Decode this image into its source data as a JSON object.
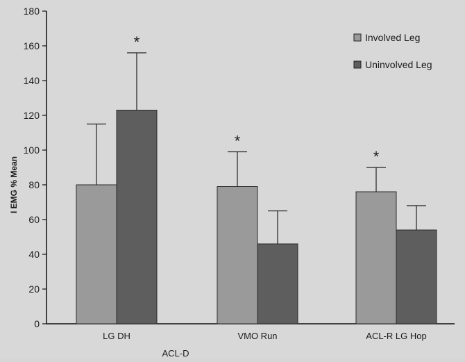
{
  "chart_data": {
    "type": "bar",
    "title": "",
    "ylabel": "I EMG % Mean",
    "xlabel": "",
    "ylim": [
      0,
      180
    ],
    "yticks": [
      0,
      20,
      40,
      60,
      80,
      100,
      120,
      140,
      160,
      180
    ],
    "categories": [
      "LG DH",
      "VMO Run",
      "ACL-R LG Hop"
    ],
    "group_label": "ACL-D",
    "legend_position": "top-right",
    "grid": false,
    "series": [
      {
        "name": "Involved Leg",
        "color": "#9a9a9a",
        "values": [
          80,
          79,
          76
        ],
        "error": [
          35,
          20,
          14
        ]
      },
      {
        "name": "Uninvolved Leg",
        "color": "#5e5e5e",
        "values": [
          123,
          46,
          54
        ],
        "error": [
          33,
          19,
          14
        ]
      }
    ],
    "annotations": [
      {
        "text": "*",
        "series": 1,
        "category": 1
      },
      {
        "text": "*",
        "series": 0,
        "category": 2
      },
      {
        "text": "*",
        "series": 0,
        "category": 3
      }
    ]
  }
}
